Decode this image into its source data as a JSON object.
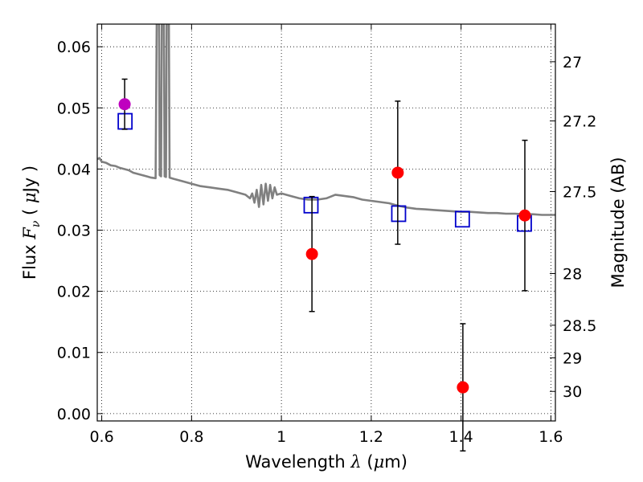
{
  "chart_data": {
    "type": "scatter",
    "xlabel_prefix": "Wavelength",
    "xlabel_symbol": "λ",
    "xlabel_unit_open": "(",
    "xlabel_unit_mu": "μ",
    "xlabel_unit_rest": "m)",
    "ylabel_prefix": "Flux",
    "ylabel_symbol": "F",
    "ylabel_sub": "ν",
    "ylabel_unit_open": "(",
    "ylabel_unit_mu": "μ",
    "ylabel_unit_rest": "Jy )",
    "y2label": "Magnitude (AB)",
    "xlim": [
      0.59,
      1.61
    ],
    "ylim": [
      -0.0012,
      0.0637
    ],
    "grid": true,
    "xticks": [
      {
        "value": 0.6,
        "label": "0.6"
      },
      {
        "value": 0.8,
        "label": "0.8"
      },
      {
        "value": 1.0,
        "label": "1"
      },
      {
        "value": 1.2,
        "label": "1.2"
      },
      {
        "value": 1.4,
        "label": "1.4"
      },
      {
        "value": 1.6,
        "label": "1.6"
      }
    ],
    "yticks": [
      {
        "value": 0.0,
        "label": "0.00"
      },
      {
        "value": 0.01,
        "label": "0.01"
      },
      {
        "value": 0.02,
        "label": "0.02"
      },
      {
        "value": 0.03,
        "label": "0.03"
      },
      {
        "value": 0.04,
        "label": "0.04"
      },
      {
        "value": 0.05,
        "label": "0.05"
      },
      {
        "value": 0.06,
        "label": "0.06"
      }
    ],
    "y2ticks": [
      {
        "mag": 27.0,
        "label": "27"
      },
      {
        "mag": 27.2,
        "label": "27.2"
      },
      {
        "mag": 27.5,
        "label": "27.5"
      },
      {
        "mag": 28.0,
        "label": "28"
      },
      {
        "mag": 28.5,
        "label": "28.5"
      },
      {
        "mag": 29.0,
        "label": "29"
      },
      {
        "mag": 30.0,
        "label": "30"
      }
    ],
    "observed": [
      {
        "x": 0.651,
        "y": 0.0506,
        "err": 0.0041,
        "color": "#bf00bf"
      },
      {
        "x": 1.068,
        "y": 0.0261,
        "err": 0.0094,
        "color": "#ff0000"
      },
      {
        "x": 1.259,
        "y": 0.0394,
        "err": 0.0117,
        "color": "#ff0000"
      },
      {
        "x": 1.404,
        "y": 0.0043,
        "err": 0.0104,
        "color": "#ff0000"
      },
      {
        "x": 1.542,
        "y": 0.0324,
        "err": 0.0123,
        "color": "#ff0000"
      }
    ],
    "model_points": [
      {
        "x": 0.652,
        "y": 0.0478
      },
      {
        "x": 1.066,
        "y": 0.0341
      },
      {
        "x": 1.261,
        "y": 0.0327
      },
      {
        "x": 1.403,
        "y": 0.0318
      },
      {
        "x": 1.541,
        "y": 0.0311
      }
    ],
    "model_spectrum": [
      [
        0.59,
        0.0416
      ],
      [
        0.595,
        0.0418
      ],
      [
        0.6,
        0.0412
      ],
      [
        0.61,
        0.041
      ],
      [
        0.62,
        0.0406
      ],
      [
        0.63,
        0.0405
      ],
      [
        0.64,
        0.0402
      ],
      [
        0.65,
        0.04
      ],
      [
        0.66,
        0.0398
      ],
      [
        0.67,
        0.0394
      ],
      [
        0.68,
        0.0392
      ],
      [
        0.69,
        0.039
      ],
      [
        0.7,
        0.0388
      ],
      [
        0.71,
        0.0386
      ],
      [
        0.72,
        0.0385
      ],
      [
        0.723,
        0.07
      ],
      [
        0.727,
        0.07
      ],
      [
        0.729,
        0.039
      ],
      [
        0.732,
        0.0388
      ],
      [
        0.734,
        0.07
      ],
      [
        0.738,
        0.07
      ],
      [
        0.74,
        0.0388
      ],
      [
        0.743,
        0.0387
      ],
      [
        0.745,
        0.07
      ],
      [
        0.749,
        0.07
      ],
      [
        0.751,
        0.0386
      ],
      [
        0.76,
        0.0384
      ],
      [
        0.78,
        0.038
      ],
      [
        0.8,
        0.0376
      ],
      [
        0.82,
        0.0372
      ],
      [
        0.84,
        0.037
      ],
      [
        0.86,
        0.0368
      ],
      [
        0.88,
        0.0366
      ],
      [
        0.9,
        0.0362
      ],
      [
        0.92,
        0.0358
      ],
      [
        0.93,
        0.0352
      ],
      [
        0.935,
        0.036
      ],
      [
        0.94,
        0.0345
      ],
      [
        0.945,
        0.0366
      ],
      [
        0.95,
        0.0338
      ],
      [
        0.955,
        0.0374
      ],
      [
        0.96,
        0.0342
      ],
      [
        0.965,
        0.0376
      ],
      [
        0.97,
        0.0348
      ],
      [
        0.975,
        0.0374
      ],
      [
        0.98,
        0.0352
      ],
      [
        0.985,
        0.037
      ],
      [
        0.99,
        0.0358
      ],
      [
        1.0,
        0.036
      ],
      [
        1.02,
        0.0356
      ],
      [
        1.04,
        0.0352
      ],
      [
        1.06,
        0.035
      ],
      [
        1.08,
        0.035
      ],
      [
        1.1,
        0.0352
      ],
      [
        1.12,
        0.0358
      ],
      [
        1.14,
        0.0356
      ],
      [
        1.16,
        0.0354
      ],
      [
        1.18,
        0.035
      ],
      [
        1.2,
        0.0348
      ],
      [
        1.22,
        0.0346
      ],
      [
        1.24,
        0.0344
      ],
      [
        1.26,
        0.034
      ],
      [
        1.28,
        0.0337
      ],
      [
        1.3,
        0.0335
      ],
      [
        1.32,
        0.0334
      ],
      [
        1.34,
        0.0333
      ],
      [
        1.36,
        0.0332
      ],
      [
        1.38,
        0.0331
      ],
      [
        1.4,
        0.033
      ],
      [
        1.42,
        0.033
      ],
      [
        1.44,
        0.0329
      ],
      [
        1.46,
        0.0328
      ],
      [
        1.48,
        0.0328
      ],
      [
        1.5,
        0.0327
      ],
      [
        1.52,
        0.0327
      ],
      [
        1.54,
        0.0326
      ],
      [
        1.56,
        0.0326
      ],
      [
        1.58,
        0.0325
      ],
      [
        1.6,
        0.0325
      ],
      [
        1.61,
        0.0325
      ]
    ],
    "colors": {
      "spectrum": "#808080",
      "model_box": "#0000cc",
      "errorbar": "#000000",
      "grid": "#000000"
    }
  }
}
